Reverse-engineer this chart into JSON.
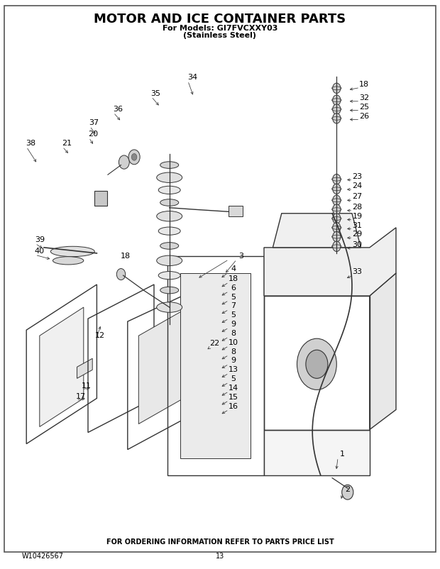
{
  "title": "MOTOR AND ICE CONTAINER PARTS",
  "subtitle1": "For Models: GI7FVCXXY03",
  "subtitle2": "(Stainless Steel)",
  "footer_text": "FOR ORDERING INFORMATION REFER TO PARTS PRICE LIST",
  "model_number": "W10426567",
  "page_number": "13",
  "bg_color": "#ffffff",
  "title_color": "#000000",
  "line_color": "#333333"
}
